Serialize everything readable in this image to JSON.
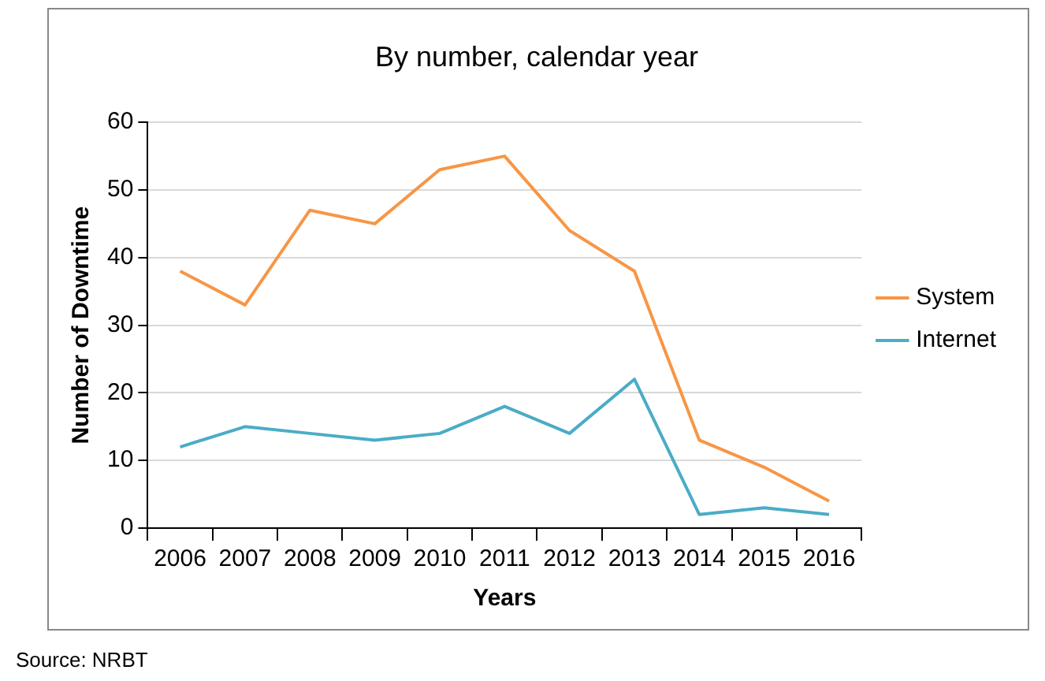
{
  "chart_data": {
    "type": "line",
    "title": "By number, calendar year",
    "xlabel": "Years",
    "ylabel": "Number of Downtime",
    "categories": [
      "2006",
      "2007",
      "2008",
      "2009",
      "2010",
      "2011",
      "2012",
      "2013",
      "2014",
      "2015",
      "2016"
    ],
    "series": [
      {
        "name": "System",
        "color": "#f79646",
        "values": [
          38,
          33,
          47,
          45,
          53,
          55,
          44,
          38,
          13,
          9,
          4
        ]
      },
      {
        "name": "Internet",
        "color": "#4bacc6",
        "values": [
          12,
          15,
          14,
          13,
          14,
          18,
          14,
          22,
          2,
          3,
          2
        ]
      }
    ],
    "ylim": [
      0,
      60
    ],
    "yticks": [
      0,
      10,
      20,
      30,
      40,
      50,
      60
    ],
    "grid": "y",
    "legend": "right",
    "marker": "none",
    "line_style": "solid",
    "annotations": [
      "Source: NRBT"
    ]
  }
}
